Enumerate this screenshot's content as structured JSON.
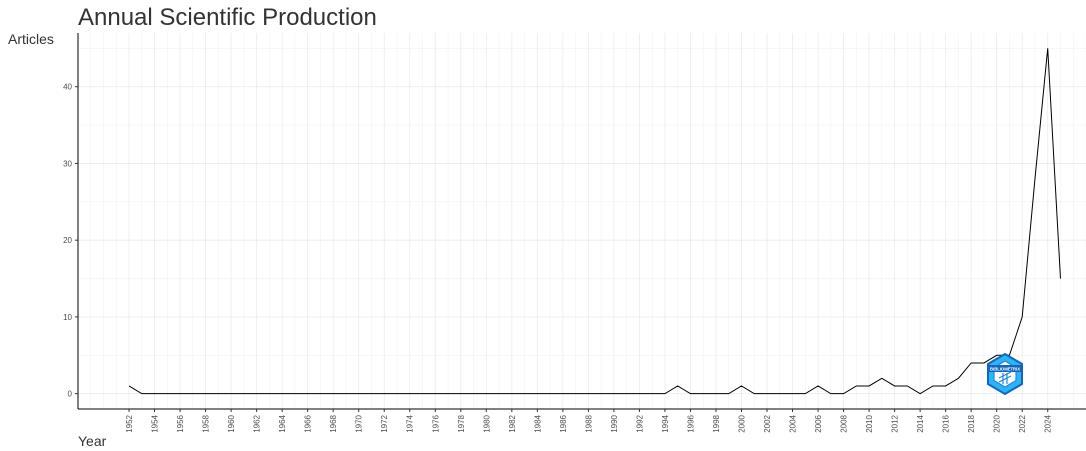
{
  "chart_data": {
    "type": "line",
    "title": "Annual Scientific Production",
    "xlabel": "Year",
    "ylabel": "Articles",
    "xlim": [
      1948,
      2027
    ],
    "ylim": [
      -2,
      47
    ],
    "x_ticks": [
      1952,
      1954,
      1956,
      1958,
      1960,
      1962,
      1964,
      1966,
      1968,
      1970,
      1972,
      1974,
      1976,
      1978,
      1980,
      1982,
      1984,
      1986,
      1988,
      1990,
      1992,
      1994,
      1996,
      1998,
      2000,
      2002,
      2004,
      2006,
      2008,
      2010,
      2012,
      2014,
      2016,
      2018,
      2020,
      2022,
      2024
    ],
    "y_ticks": [
      0,
      10,
      20,
      30,
      40
    ],
    "grid": true,
    "line_color": "#000000",
    "grid_color": "#ebebeb",
    "x": [
      1952,
      1953,
      1954,
      1955,
      1956,
      1957,
      1958,
      1959,
      1960,
      1961,
      1962,
      1963,
      1964,
      1965,
      1966,
      1967,
      1968,
      1969,
      1970,
      1971,
      1972,
      1973,
      1974,
      1975,
      1976,
      1977,
      1978,
      1979,
      1980,
      1981,
      1982,
      1983,
      1984,
      1985,
      1986,
      1987,
      1988,
      1989,
      1990,
      1991,
      1992,
      1993,
      1994,
      1995,
      1996,
      1997,
      1998,
      1999,
      2000,
      2001,
      2002,
      2003,
      2004,
      2005,
      2006,
      2007,
      2008,
      2009,
      2010,
      2011,
      2012,
      2013,
      2014,
      2015,
      2016,
      2017,
      2018,
      2019,
      2020,
      2021,
      2022,
      2023,
      2024,
      2025
    ],
    "values": [
      1,
      0,
      0,
      0,
      0,
      0,
      0,
      0,
      0,
      0,
      0,
      0,
      0,
      0,
      0,
      0,
      0,
      0,
      0,
      0,
      0,
      0,
      0,
      0,
      0,
      0,
      0,
      0,
      0,
      0,
      0,
      0,
      0,
      0,
      0,
      0,
      0,
      0,
      0,
      0,
      0,
      0,
      0,
      1,
      0,
      0,
      0,
      0,
      1,
      0,
      0,
      0,
      0,
      0,
      1,
      0,
      0,
      1,
      1,
      2,
      1,
      1,
      0,
      1,
      1,
      2,
      4,
      4,
      5,
      5,
      10,
      28,
      45,
      15
    ]
  },
  "logo": {
    "icon": "bibliometrix-logo-icon",
    "text": "BIBLIOMETRIX",
    "color": "#1e88e5"
  }
}
